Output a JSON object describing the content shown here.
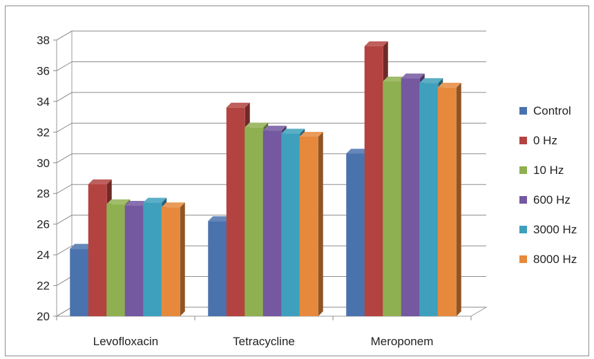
{
  "chart_data": {
    "type": "bar",
    "title": "",
    "xlabel": "",
    "ylabel": "",
    "ylim": [
      20,
      38
    ],
    "ytick_step": 2,
    "yticks": [
      "20",
      "22",
      "24",
      "26",
      "28",
      "30",
      "32",
      "34",
      "36",
      "38"
    ],
    "categories": [
      "Levofloxacin",
      "Tetracycline",
      "Meroponem"
    ],
    "series": [
      {
        "name": "Control",
        "color": "#4a72ad",
        "values": [
          24.4,
          26.2,
          30.6
        ]
      },
      {
        "name": "0 Hz",
        "color": "#b34340",
        "values": [
          28.6,
          33.6,
          37.6
        ]
      },
      {
        "name": "10 Hz",
        "color": "#8fb050",
        "values": [
          27.3,
          32.3,
          35.3
        ]
      },
      {
        "name": "600 Hz",
        "color": "#7458a0",
        "values": [
          27.2,
          32.1,
          35.5
        ]
      },
      {
        "name": "3000 Hz",
        "color": "#3ea0bc",
        "values": [
          27.4,
          31.9,
          35.2
        ]
      },
      {
        "name": "8000 Hz",
        "color": "#e6893c",
        "values": [
          27.1,
          31.7,
          34.9
        ]
      }
    ],
    "grid": true,
    "legend_position": "right",
    "style": "3d-clustered-column"
  }
}
